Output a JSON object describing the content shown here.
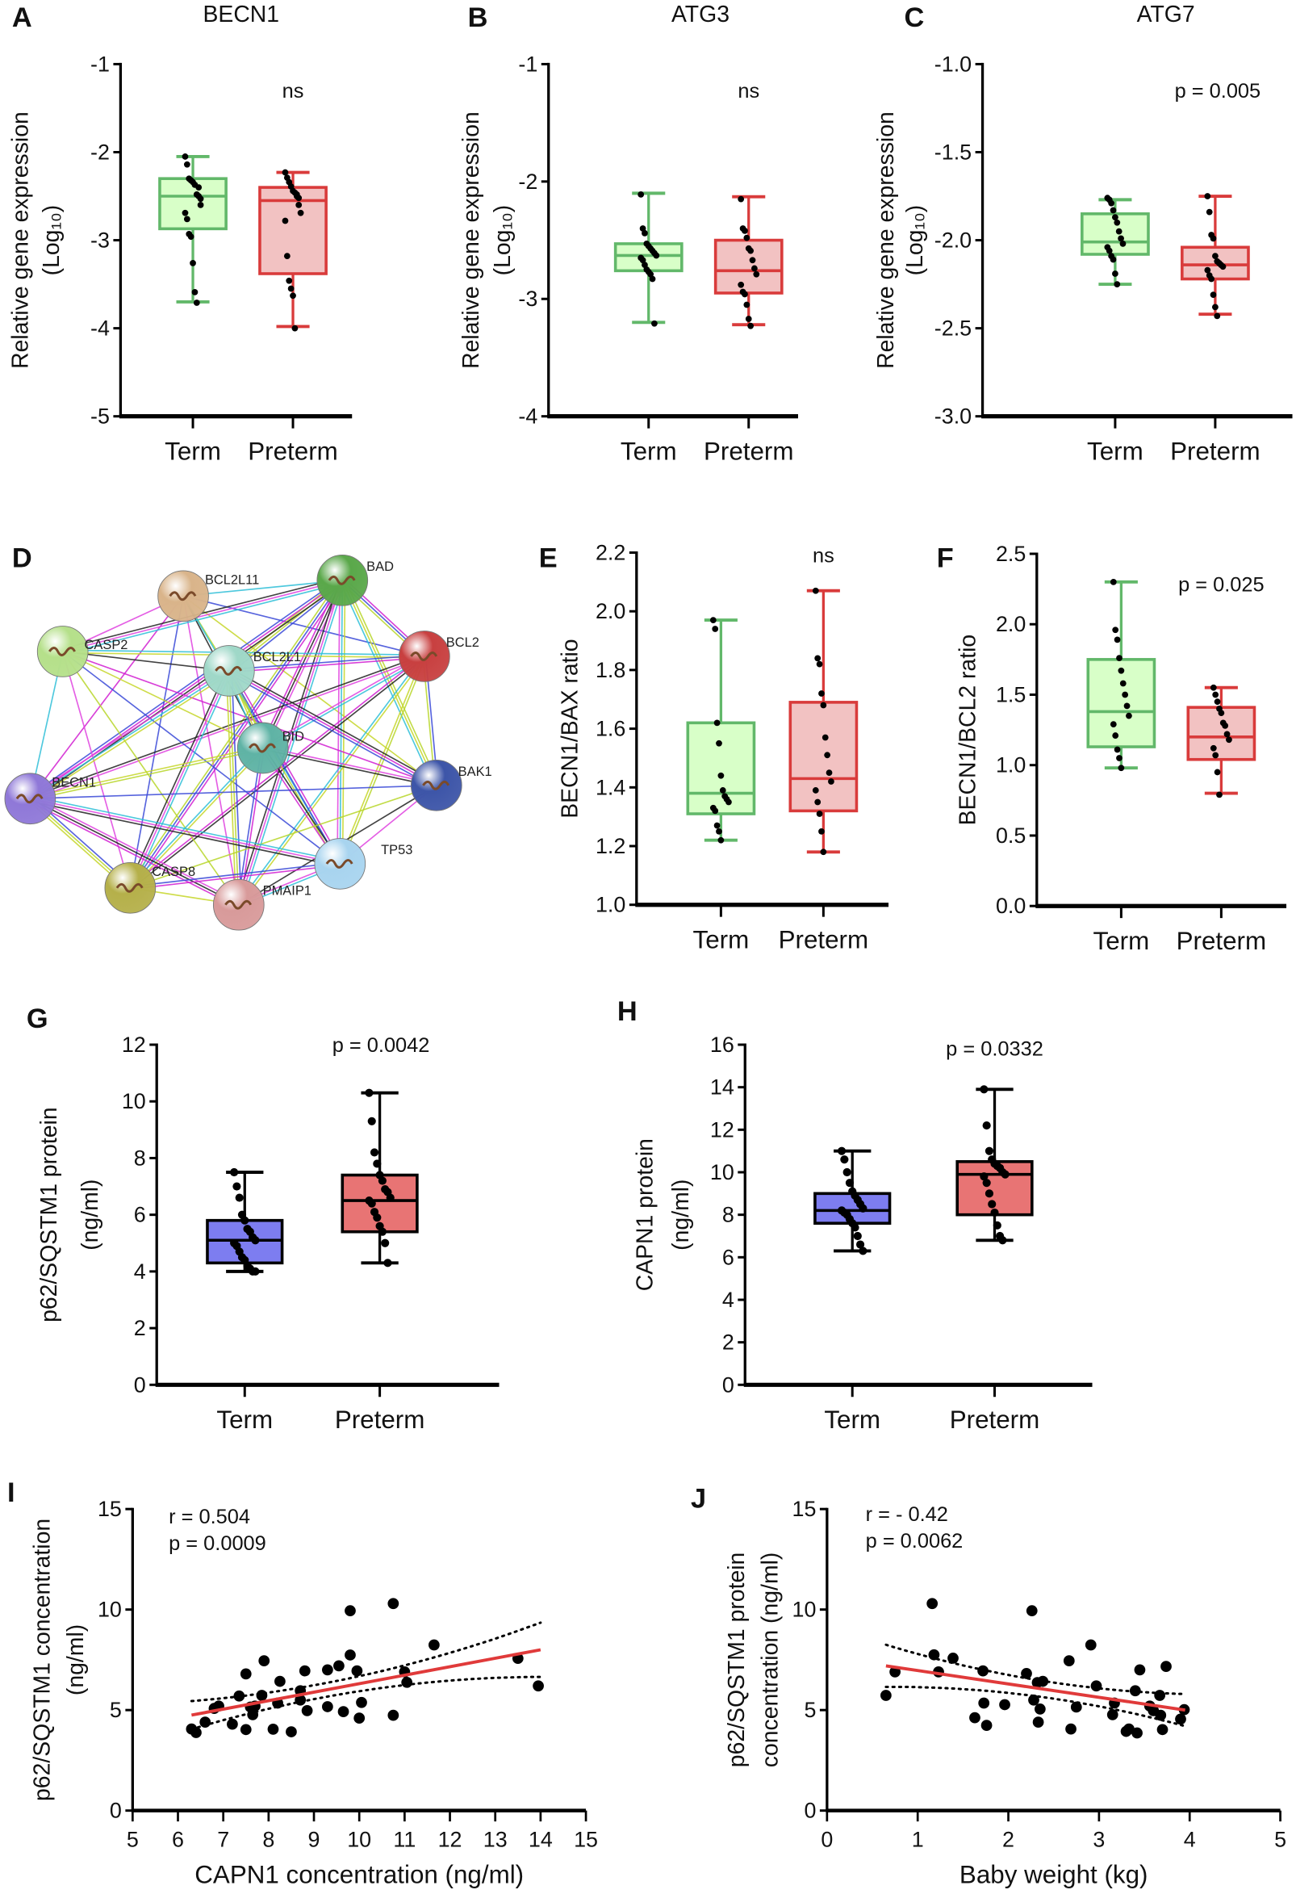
{
  "panel_letters": [
    "A",
    "B",
    "C",
    "D",
    "E",
    "F",
    "G",
    "H",
    "I",
    "J"
  ],
  "colors": {
    "term_fill": "#d8ffc8",
    "term_stroke": "#62b86a",
    "preterm_fill": "#f2c2c2",
    "preterm_stroke": "#d93b3b",
    "term_protein_fill": "#7d7df0",
    "preterm_protein_fill": "#e87474",
    "regression": "#e03a3a"
  },
  "network": {
    "nodes": [
      {
        "name": "BCL2L11",
        "color": "#d9b48a"
      },
      {
        "name": "BAD",
        "color": "#5aa84a"
      },
      {
        "name": "BCL2",
        "color": "#c84040"
      },
      {
        "name": "CASP2",
        "color": "#b5e08a"
      },
      {
        "name": "BCL2L1",
        "color": "#9fd8c8"
      },
      {
        "name": "BID",
        "color": "#5fb3a5"
      },
      {
        "name": "BAK1",
        "color": "#3d55a8"
      },
      {
        "name": "BECN1",
        "color": "#8f78d8"
      },
      {
        "name": "TP53",
        "color": "#a8d4ef"
      },
      {
        "name": "CASP8",
        "color": "#b5b04a"
      },
      {
        "name": "PMAIP1",
        "color": "#d89a9a"
      }
    ]
  },
  "chart_data": [
    {
      "id": "A",
      "type": "box",
      "title": "BECN1",
      "ylabel": [
        "Relative gene expression",
        "(Log₁₀)"
      ],
      "ylim": [
        -5,
        -1
      ],
      "yticks": [
        -1,
        -2,
        -3,
        -4,
        -5
      ],
      "ytick_labels": [
        "-1",
        "-2",
        "-3",
        "-4",
        "-5"
      ],
      "annotation": "ns",
      "groups": [
        {
          "name": "Term",
          "style": "term",
          "min": -3.7,
          "q1": -2.87,
          "median": -2.5,
          "q3": -2.3,
          "max": -2.05,
          "points": [
            -2.05,
            -2.14,
            -2.3,
            -2.32,
            -2.34,
            -2.37,
            -2.48,
            -2.5,
            -2.53,
            -2.69,
            -2.76,
            -2.93,
            -2.96,
            -3.26,
            -3.59,
            -3.71,
            -2.4,
            -2.6
          ]
        },
        {
          "name": "Preterm",
          "style": "preterm",
          "min": -3.98,
          "q1": -3.38,
          "median": -2.55,
          "q3": -2.4,
          "max": -2.23,
          "points": [
            -2.23,
            -2.29,
            -2.34,
            -2.39,
            -2.44,
            -2.46,
            -2.48,
            -2.6,
            -2.69,
            -2.78,
            -3.18,
            -3.46,
            -3.55,
            -3.63,
            -4.0,
            -2.5,
            -2.52
          ]
        }
      ]
    },
    {
      "id": "B",
      "type": "box",
      "title": "ATG3",
      "ylabel": [
        "Relative gene expression",
        "(Log₁₀)"
      ],
      "ylim": [
        -4,
        -1
      ],
      "yticks": [
        -1,
        -2,
        -3,
        -4
      ],
      "ytick_labels": [
        "-1",
        "-2",
        "-3",
        "-4"
      ],
      "annotation": "ns",
      "groups": [
        {
          "name": "Term",
          "style": "term",
          "min": -3.2,
          "q1": -2.76,
          "median": -2.63,
          "q3": -2.53,
          "max": -2.1,
          "points": [
            -2.11,
            -2.4,
            -2.44,
            -2.53,
            -2.55,
            -2.57,
            -2.59,
            -2.61,
            -2.63,
            -2.65,
            -2.67,
            -2.71,
            -2.75,
            -2.77,
            -2.79,
            -2.83,
            -3.21
          ]
        },
        {
          "name": "Preterm",
          "style": "preterm",
          "min": -3.22,
          "q1": -2.95,
          "median": -2.76,
          "q3": -2.5,
          "max": -2.13,
          "points": [
            -2.15,
            -2.4,
            -2.42,
            -2.48,
            -2.57,
            -2.59,
            -2.67,
            -2.74,
            -2.79,
            -2.88,
            -2.94,
            -2.96,
            -3.05,
            -3.17,
            -3.23
          ]
        }
      ]
    },
    {
      "id": "C",
      "type": "box",
      "title": "ATG7",
      "ylabel": [
        "Relative gene expression",
        "(Log₁₀)"
      ],
      "ylim": [
        -3.0,
        -1.0
      ],
      "yticks": [
        -1.0,
        -1.5,
        -2.0,
        -2.5,
        -3.0
      ],
      "ytick_labels": [
        "-1.0",
        "-1.5",
        "-2.0",
        "-2.5",
        "-3.0"
      ],
      "annotation": "p = 0.005",
      "groups": [
        {
          "name": "Term",
          "style": "term",
          "min": -2.25,
          "q1": -2.08,
          "median": -2.01,
          "q3": -1.85,
          "max": -1.77,
          "points": [
            -1.76,
            -1.77,
            -1.79,
            -1.83,
            -1.87,
            -1.9,
            -1.95,
            -1.99,
            -2.02,
            -2.04,
            -2.06,
            -2.09,
            -2.11,
            -2.19,
            -2.25
          ]
        },
        {
          "name": "Preterm",
          "style": "preterm",
          "min": -2.42,
          "q1": -2.22,
          "median": -2.14,
          "q3": -2.04,
          "max": -1.75,
          "points": [
            -1.75,
            -1.84,
            -1.97,
            -1.99,
            -2.09,
            -2.12,
            -2.13,
            -2.14,
            -2.15,
            -2.17,
            -2.2,
            -2.22,
            -2.31,
            -2.38,
            -2.43
          ]
        }
      ]
    },
    {
      "id": "E",
      "type": "box",
      "title": "",
      "ylabel": [
        "BECN1/BAX ratio"
      ],
      "ylim": [
        1.0,
        2.2
      ],
      "yticks": [
        1.0,
        1.2,
        1.4,
        1.6,
        1.8,
        2.0,
        2.2
      ],
      "ytick_labels": [
        "1.0",
        "1.2",
        "1.4",
        "1.6",
        "1.8",
        "2.0",
        "2.2"
      ],
      "annotation": "ns",
      "groups": [
        {
          "name": "Term",
          "style": "term",
          "min": 1.22,
          "q1": 1.31,
          "median": 1.38,
          "q3": 1.62,
          "max": 1.97,
          "points": [
            1.97,
            1.94,
            1.62,
            1.55,
            1.44,
            1.39,
            1.37,
            1.36,
            1.35,
            1.33,
            1.32,
            1.27,
            1.25,
            1.22
          ]
        },
        {
          "name": "Preterm",
          "style": "preterm",
          "min": 1.18,
          "q1": 1.32,
          "median": 1.43,
          "q3": 1.69,
          "max": 2.07,
          "points": [
            2.07,
            1.84,
            1.82,
            1.72,
            1.68,
            1.57,
            1.51,
            1.45,
            1.42,
            1.39,
            1.35,
            1.31,
            1.25,
            1.18
          ]
        }
      ]
    },
    {
      "id": "F",
      "type": "box",
      "title": "",
      "ylabel": [
        "BECN1/BCL2 ratio"
      ],
      "ylim": [
        0.0,
        2.5
      ],
      "yticks": [
        0.0,
        0.5,
        1.0,
        1.5,
        2.0,
        2.5
      ],
      "ytick_labels": [
        "0.0",
        "0.5",
        "1.0",
        "1.5",
        "2.0",
        "2.5"
      ],
      "annotation": "p = 0.025",
      "groups": [
        {
          "name": "Term",
          "style": "term",
          "min": 0.98,
          "q1": 1.13,
          "median": 1.38,
          "q3": 1.75,
          "max": 2.3,
          "points": [
            2.3,
            1.96,
            1.89,
            1.76,
            1.67,
            1.58,
            1.5,
            1.42,
            1.35,
            1.29,
            1.21,
            1.11,
            1.05,
            0.98
          ]
        },
        {
          "name": "Preterm",
          "style": "preterm",
          "min": 0.8,
          "q1": 1.04,
          "median": 1.2,
          "q3": 1.41,
          "max": 1.55,
          "points": [
            1.55,
            1.5,
            1.45,
            1.4,
            1.37,
            1.3,
            1.28,
            1.22,
            1.18,
            1.12,
            1.07,
            0.95,
            0.79
          ]
        }
      ]
    },
    {
      "id": "G",
      "type": "box",
      "title": "",
      "ylabel": [
        "p62/SQSTM1 protein",
        "(ng/ml)"
      ],
      "ylim": [
        0,
        12
      ],
      "yticks": [
        0,
        2,
        4,
        6,
        8,
        10,
        12
      ],
      "ytick_labels": [
        "0",
        "2",
        "4",
        "6",
        "8",
        "10",
        "12"
      ],
      "annotation": "p = 0.0042",
      "groups": [
        {
          "name": "Term",
          "style": "term_protein",
          "min": 4.0,
          "q1": 4.3,
          "median": 5.1,
          "q3": 5.8,
          "max": 7.5,
          "points": [
            7.5,
            7.0,
            6.6,
            6.0,
            5.8,
            5.5,
            5.4,
            5.2,
            5.1,
            5.0,
            4.9,
            4.7,
            4.5,
            4.4,
            4.2,
            4.1,
            4.0,
            4.0
          ]
        },
        {
          "name": "Preterm",
          "style": "preterm_protein",
          "min": 4.3,
          "q1": 5.4,
          "median": 6.5,
          "q3": 7.4,
          "max": 10.3,
          "points": [
            10.3,
            9.3,
            8.2,
            7.8,
            7.4,
            7.2,
            6.9,
            6.8,
            6.6,
            6.5,
            6.4,
            6.1,
            5.9,
            5.6,
            5.4,
            5.0,
            4.3
          ]
        }
      ]
    },
    {
      "id": "H",
      "type": "box",
      "title": "",
      "ylabel": [
        "CAPN1 protein",
        "(ng/ml)"
      ],
      "ylim": [
        0,
        16
      ],
      "yticks": [
        0,
        2,
        4,
        6,
        8,
        10,
        12,
        14,
        16
      ],
      "ytick_labels": [
        "0",
        "2",
        "4",
        "6",
        "8",
        "10",
        "12",
        "14",
        "16"
      ],
      "annotation": "p = 0.0332",
      "groups": [
        {
          "name": "Term",
          "style": "term_protein",
          "min": 6.3,
          "q1": 7.6,
          "median": 8.2,
          "q3": 9.0,
          "max": 11.0,
          "points": [
            11.0,
            10.6,
            10.0,
            9.5,
            9.1,
            8.9,
            8.7,
            8.5,
            8.3,
            8.2,
            8.1,
            8.0,
            7.8,
            7.6,
            7.4,
            7.0,
            6.6,
            6.3
          ]
        },
        {
          "name": "Preterm",
          "style": "preterm_protein",
          "min": 6.8,
          "q1": 8.0,
          "median": 9.9,
          "q3": 10.5,
          "max": 13.9,
          "points": [
            13.9,
            12.2,
            11.0,
            10.6,
            10.4,
            10.3,
            10.2,
            10.0,
            9.9,
            9.8,
            9.5,
            9.0,
            8.5,
            8.1,
            7.5,
            7.0,
            6.8
          ]
        }
      ]
    },
    {
      "id": "I",
      "type": "scatter",
      "xlabel": "CAPN1 concentration (ng/ml)",
      "ylabel": [
        "p62/SQSTM1 concentration",
        "(ng/ml)"
      ],
      "xlim": [
        5,
        15
      ],
      "ylim": [
        0,
        15
      ],
      "xticks": [
        5,
        6,
        7,
        8,
        9,
        10,
        11,
        12,
        13,
        14,
        15
      ],
      "xtick_labels": [
        "5",
        "6",
        "7",
        "8",
        "9",
        "10",
        "11",
        "12",
        "13",
        "14",
        "15"
      ],
      "yticks": [
        0,
        5,
        10,
        15
      ],
      "ytick_labels": [
        "0",
        "5",
        "10",
        "15"
      ],
      "annotations": [
        "r = 0.504",
        "p = 0.0009"
      ],
      "regression": {
        "x": [
          6.3,
          14.0
        ],
        "y": [
          4.75,
          8.0
        ]
      },
      "ci_halfwidth": {
        "start": 0.7,
        "center": 0.35,
        "center_x": 8.8,
        "end": 1.35
      },
      "points": [
        [
          6.3,
          4.06
        ],
        [
          6.4,
          3.88
        ],
        [
          6.6,
          4.4
        ],
        [
          6.8,
          5.08
        ],
        [
          6.9,
          5.2
        ],
        [
          7.2,
          4.3
        ],
        [
          7.35,
          5.7
        ],
        [
          7.5,
          6.8
        ],
        [
          7.5,
          4.03
        ],
        [
          7.6,
          5.15
        ],
        [
          7.65,
          4.77
        ],
        [
          7.7,
          5.2
        ],
        [
          7.85,
          5.73
        ],
        [
          7.9,
          7.45
        ],
        [
          8.1,
          4.05
        ],
        [
          8.2,
          5.35
        ],
        [
          8.25,
          6.43
        ],
        [
          8.5,
          3.92
        ],
        [
          8.7,
          5.96
        ],
        [
          8.7,
          5.5
        ],
        [
          8.8,
          6.95
        ],
        [
          8.85,
          4.97
        ],
        [
          9.3,
          7.0
        ],
        [
          9.3,
          5.17
        ],
        [
          9.55,
          7.2
        ],
        [
          9.65,
          4.92
        ],
        [
          9.8,
          9.94
        ],
        [
          9.8,
          7.74
        ],
        [
          9.95,
          6.95
        ],
        [
          10.0,
          4.6
        ],
        [
          10.05,
          5.38
        ],
        [
          10.75,
          10.3
        ],
        [
          10.75,
          4.74
        ],
        [
          11.0,
          6.9
        ],
        [
          11.05,
          6.38
        ],
        [
          11.65,
          8.24
        ],
        [
          13.5,
          7.57
        ],
        [
          13.95,
          6.2
        ]
      ]
    },
    {
      "id": "J",
      "type": "scatter",
      "xlabel": "Baby weight (kg)",
      "ylabel": [
        "p62/SQSTM1 protein",
        "concentration (ng/ml)"
      ],
      "xlim": [
        0,
        5
      ],
      "ylim": [
        0,
        15
      ],
      "xticks": [
        0,
        1,
        2,
        3,
        4,
        5
      ],
      "xtick_labels": [
        "0",
        "1",
        "2",
        "3",
        "4",
        "5"
      ],
      "yticks": [
        0,
        5,
        10,
        15
      ],
      "ytick_labels": [
        "0",
        "5",
        "10",
        "15"
      ],
      "annotations": [
        "r = - 0.42",
        "p = 0.0062"
      ],
      "regression": {
        "x": [
          0.65,
          3.95
        ],
        "y": [
          7.2,
          5.0
        ]
      },
      "ci_halfwidth": {
        "start": 1.05,
        "center": 0.4,
        "center_x": 2.5,
        "end": 0.8
      },
      "points": [
        [
          0.65,
          5.73
        ],
        [
          0.75,
          6.9
        ],
        [
          1.16,
          10.3
        ],
        [
          1.18,
          7.75
        ],
        [
          1.23,
          6.9
        ],
        [
          1.39,
          7.58
        ],
        [
          1.63,
          4.62
        ],
        [
          1.72,
          6.95
        ],
        [
          1.73,
          5.35
        ],
        [
          1.76,
          4.24
        ],
        [
          1.96,
          5.27
        ],
        [
          2.2,
          6.82
        ],
        [
          2.26,
          9.94
        ],
        [
          2.28,
          5.5
        ],
        [
          2.32,
          6.37
        ],
        [
          2.33,
          4.4
        ],
        [
          2.35,
          5.05
        ],
        [
          2.38,
          6.43
        ],
        [
          2.67,
          7.45
        ],
        [
          2.69,
          4.06
        ],
        [
          2.75,
          5.15
        ],
        [
          2.91,
          8.24
        ],
        [
          2.97,
          6.2
        ],
        [
          3.15,
          4.77
        ],
        [
          3.17,
          5.35
        ],
        [
          3.3,
          3.94
        ],
        [
          3.33,
          4.06
        ],
        [
          3.4,
          5.96
        ],
        [
          3.42,
          3.86
        ],
        [
          3.45,
          7.0
        ],
        [
          3.56,
          5.2
        ],
        [
          3.6,
          4.97
        ],
        [
          3.67,
          5.73
        ],
        [
          3.68,
          4.74
        ],
        [
          3.7,
          4.03
        ],
        [
          3.74,
          7.17
        ],
        [
          3.9,
          4.55
        ],
        [
          3.94,
          5.02
        ]
      ]
    }
  ]
}
